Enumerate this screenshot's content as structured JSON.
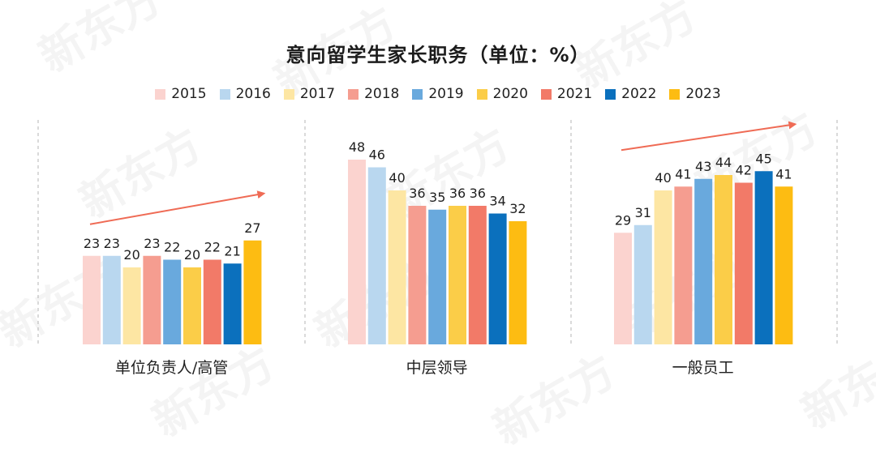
{
  "watermark": "新东方",
  "colors": {
    "2015": "#fbd3cf",
    "2016": "#b9d7ef",
    "2017": "#fde6a3",
    "2018": "#f59d90",
    "2019": "#69a9dd",
    "2020": "#fbcd48",
    "2021": "#f27a68",
    "2022": "#0b70bd",
    "2023": "#fdbc12",
    "trend_arrow": "#ef6b55",
    "divider": "#b5b5b5"
  },
  "chart_data": {
    "type": "bar",
    "title": "意向留学生家长职务（单位：%）",
    "categories": [
      "单位负责人/高管",
      "中层领导",
      "一般员工"
    ],
    "series": [
      {
        "name": "2015",
        "values": [
          23,
          48,
          29
        ]
      },
      {
        "name": "2016",
        "values": [
          23,
          46,
          31
        ]
      },
      {
        "name": "2017",
        "values": [
          20,
          40,
          40
        ]
      },
      {
        "name": "2018",
        "values": [
          23,
          36,
          41
        ]
      },
      {
        "name": "2019",
        "values": [
          22,
          35,
          43
        ]
      },
      {
        "name": "2020",
        "values": [
          20,
          36,
          44
        ]
      },
      {
        "name": "2021",
        "values": [
          22,
          36,
          42
        ]
      },
      {
        "name": "2022",
        "values": [
          21,
          34,
          45
        ]
      },
      {
        "name": "2023",
        "values": [
          27,
          32,
          41
        ]
      }
    ],
    "ylim": [
      0,
      50
    ],
    "trend_arrows": [
      "单位负责人/高管",
      "一般员工"
    ],
    "legend_position": "top",
    "grid": false
  }
}
